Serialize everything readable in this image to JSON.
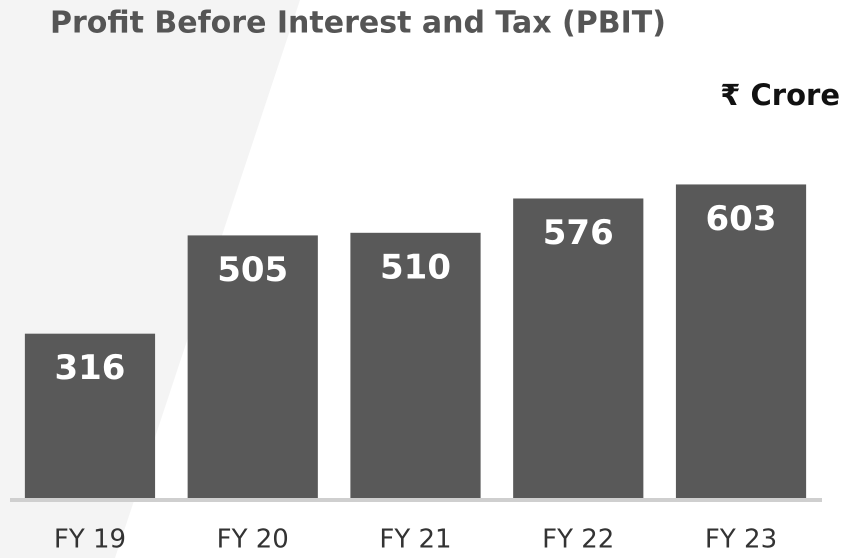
{
  "chart_data": {
    "type": "bar",
    "title": "Profit Before Interest and Tax (PBIT)",
    "unit": "₹ Crore",
    "categories": [
      "FY 19",
      "FY 20",
      "FY 21",
      "FY 22",
      "FY 23"
    ],
    "values": [
      316,
      505,
      510,
      576,
      603
    ],
    "color": "#595959",
    "ylim": [
      0,
      700
    ],
    "grid": false
  }
}
